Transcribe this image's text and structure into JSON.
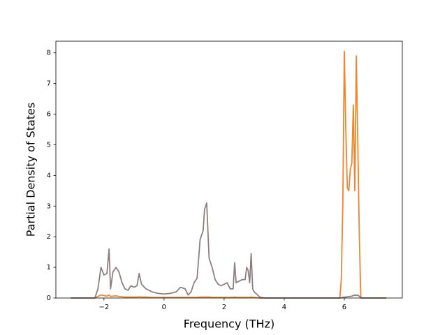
{
  "chart_data": {
    "type": "line",
    "x_label": "Frequency (THz)",
    "y_label": "Partial Density of States",
    "x": [
      -3.1,
      -2.3,
      -2.2,
      -2.1,
      -2.0,
      -1.9,
      -1.83,
      -1.78,
      -1.7,
      -1.6,
      -1.5,
      -1.4,
      -1.3,
      -1.2,
      -1.1,
      -1.0,
      -0.9,
      -0.83,
      -0.75,
      -0.6,
      -0.4,
      -0.2,
      0,
      0.2,
      0.4,
      0.55,
      0.7,
      0.8,
      0.9,
      1.0,
      1.1,
      1.2,
      1.3,
      1.35,
      1.42,
      1.5,
      1.6,
      1.7,
      1.8,
      1.9,
      2.0,
      2.1,
      2.2,
      2.3,
      2.35,
      2.4,
      2.5,
      2.6,
      2.7,
      2.75,
      2.8,
      2.85,
      2.9,
      2.95,
      3.0,
      3.2,
      3.4,
      5.85,
      5.9,
      5.95,
      6.0,
      6.05,
      6.1,
      6.15,
      6.2,
      6.25,
      6.3,
      6.35,
      6.4,
      6.45,
      6.5,
      6.55,
      6.6,
      7.4
    ],
    "series": [
      {
        "color": "#f0852d",
        "values": [
          0,
          0,
          0.05,
          0.1,
          0.08,
          0.06,
          0.1,
          0.05,
          0.06,
          0.07,
          0.05,
          0.04,
          0.03,
          0.03,
          0.03,
          0.03,
          0.03,
          0.04,
          0.03,
          0.03,
          0.02,
          0.02,
          0.02,
          0.02,
          0.02,
          0.02,
          0.02,
          0.02,
          0.02,
          0.02,
          0.02,
          0.03,
          0.03,
          0.03,
          0.03,
          0.03,
          0.02,
          0.02,
          0.02,
          0.02,
          0.02,
          0.02,
          0.02,
          0.02,
          0.03,
          0.02,
          0.02,
          0.02,
          0.02,
          0.02,
          0.02,
          0.02,
          0.03,
          0.02,
          0.02,
          0,
          0,
          0,
          0.6,
          3.0,
          8.05,
          5.5,
          3.6,
          3.5,
          4.2,
          4.4,
          6.3,
          3.5,
          7.9,
          5.0,
          2.0,
          0,
          0,
          0
        ]
      },
      {
        "color": "#8f7f80",
        "values": [
          0,
          0,
          0.3,
          1.0,
          0.75,
          0.8,
          1.6,
          0.3,
          0.85,
          1.0,
          0.85,
          0.5,
          0.3,
          0.25,
          0.4,
          0.35,
          0.4,
          0.8,
          0.45,
          0.3,
          0.2,
          0.15,
          0.13,
          0.15,
          0.2,
          0.35,
          0.3,
          0.1,
          0.2,
          0.5,
          0.65,
          1.9,
          2.2,
          2.9,
          3.1,
          1.3,
          1.0,
          0.6,
          0.45,
          0.4,
          0.45,
          0.5,
          0.3,
          0.3,
          1.15,
          0.5,
          0.55,
          0.6,
          0.6,
          1.0,
          0.9,
          0.5,
          1.45,
          0.3,
          0.2,
          0.02,
          0,
          0,
          0.01,
          0.02,
          0.03,
          0.03,
          0.04,
          0.05,
          0.05,
          0.06,
          0.08,
          0.1,
          0.08,
          0.1,
          0.05,
          0.02,
          0,
          0
        ]
      }
    ],
    "xlim": [
      -3.6,
      7.93
    ],
    "ylim": [
      0,
      8.38
    ],
    "xticks": [
      {
        "value": -2,
        "label": "−2"
      },
      0,
      2,
      4,
      6
    ],
    "yticks": [
      0,
      1,
      2,
      3,
      4,
      5,
      6,
      7,
      8
    ],
    "grid": false
  }
}
